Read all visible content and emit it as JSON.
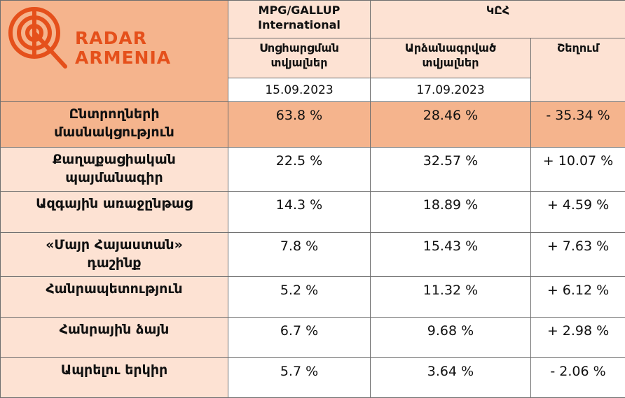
{
  "logo": {
    "line1": "RADAR",
    "line2": "ARMENIA",
    "color": "#e5501b"
  },
  "header": {
    "poll": {
      "line1": "MPG/GALLUP",
      "line2": "International"
    },
    "cec": "ԿԸՀ",
    "poll_sub": {
      "line1": "Սոցհարցման",
      "line2": "տվյալներ"
    },
    "cec_sub": {
      "line1": "Արձանագրված",
      "line2": "տվյալներ"
    },
    "diff": "Շեղում",
    "poll_date": "15.09.2023",
    "cec_date": "17.09.2023"
  },
  "rows": [
    {
      "label1": "Ընտրողների",
      "label2": "մասնակցություն",
      "poll": "63.8 %",
      "cec": "28.46 %",
      "diff": "- 35.34 %"
    },
    {
      "label1": "Քաղաքացիական",
      "label2": "պայմանագիր",
      "poll": "22.5 %",
      "cec": "32.57 %",
      "diff": "+ 10.07 %"
    },
    {
      "label1": "Ազգային առաջընթաց",
      "label2": "",
      "poll": "14.3 %",
      "cec": "18.89 %",
      "diff": "+ 4.59 %"
    },
    {
      "label1": "«Մայր Հայաստան»",
      "label2": "դաշինք",
      "poll": "7.8 %",
      "cec": "15.43 %",
      "diff": "+ 7.63 %"
    },
    {
      "label1": "Հանրապետություն",
      "label2": "",
      "poll": "5.2 %",
      "cec": "11.32 %",
      "diff": "+ 6.12 %"
    },
    {
      "label1": "Հանրային ձայն",
      "label2": "",
      "poll": "6.7 %",
      "cec": "9.68 %",
      "diff": "+ 2.98 %"
    },
    {
      "label1": "Ապրելու երկիր",
      "label2": "",
      "poll": "5.7 %",
      "cec": "3.64 %",
      "diff": "- 2.06 %"
    }
  ]
}
